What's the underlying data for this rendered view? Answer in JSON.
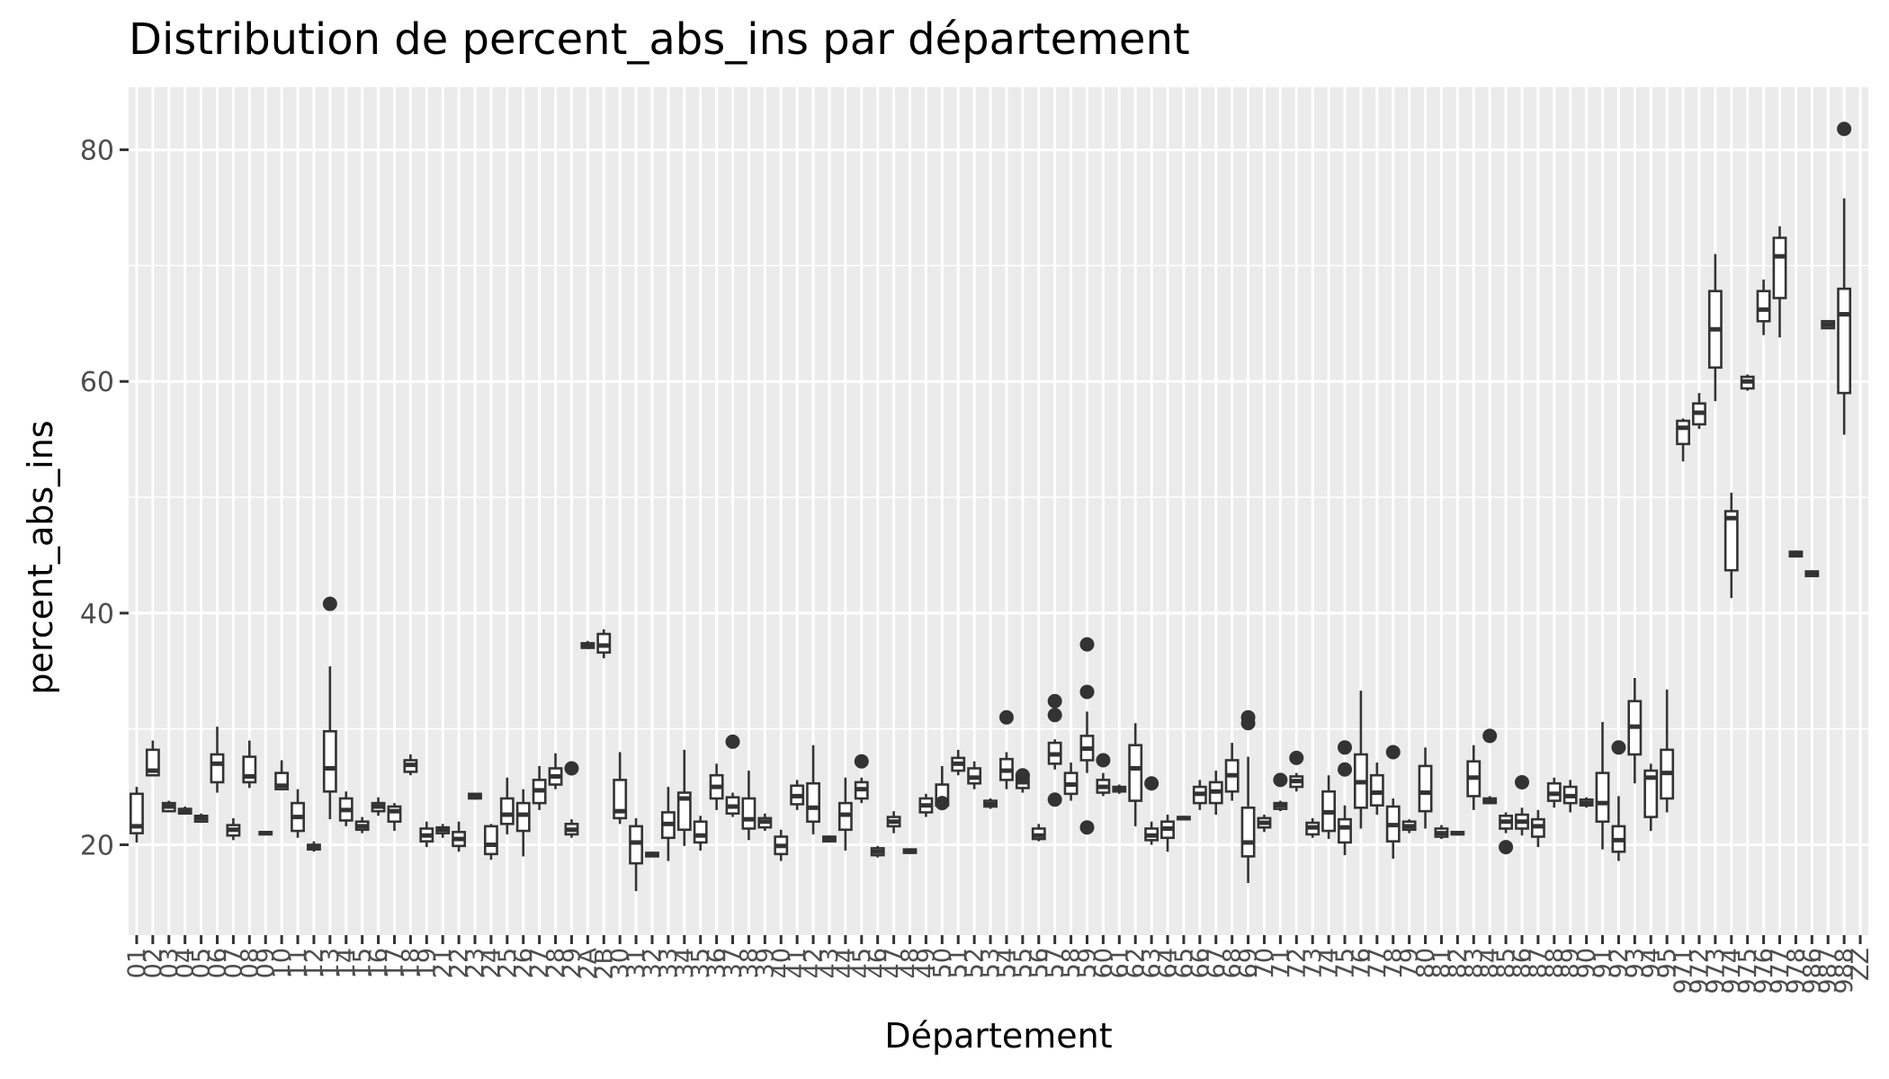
{
  "chart_data": {
    "type": "boxplot",
    "title": "Distribution de percent_abs_ins par département",
    "xlabel": "Département",
    "ylabel": "percent_abs_ins",
    "ylim": [
      12.2,
      85.4
    ],
    "yticks": [
      20,
      40,
      60,
      80
    ],
    "grid": true,
    "panel_background": "#ebebeb",
    "grid_color": "#ffffff",
    "box_color": "#333333",
    "categories": [
      "01",
      "02",
      "03",
      "04",
      "05",
      "06",
      "07",
      "08",
      "09",
      "10",
      "11",
      "12",
      "13",
      "14",
      "15",
      "16",
      "17",
      "18",
      "19",
      "21",
      "22",
      "23",
      "24",
      "25",
      "26",
      "27",
      "28",
      "29",
      "2A",
      "2B",
      "30",
      "31",
      "32",
      "33",
      "34",
      "35",
      "36",
      "37",
      "38",
      "39",
      "40",
      "41",
      "42",
      "43",
      "44",
      "45",
      "46",
      "47",
      "48",
      "49",
      "50",
      "51",
      "52",
      "53",
      "54",
      "55",
      "56",
      "57",
      "58",
      "59",
      "60",
      "61",
      "62",
      "63",
      "64",
      "65",
      "66",
      "67",
      "68",
      "69",
      "70",
      "71",
      "72",
      "73",
      "74",
      "75",
      "76",
      "77",
      "78",
      "79",
      "80",
      "81",
      "82",
      "83",
      "84",
      "85",
      "86",
      "87",
      "88",
      "89",
      "90",
      "91",
      "92",
      "93",
      "94",
      "95",
      "971",
      "972",
      "973",
      "974",
      "975",
      "976",
      "977",
      "978",
      "986",
      "987",
      "988",
      "ZZ"
    ],
    "boxes": [
      {
        "q1": 21.0,
        "median": 21.6,
        "q3": 24.4,
        "lo": 20.2,
        "hi": 25.0,
        "out": []
      },
      {
        "q1": 26.0,
        "median": 26.4,
        "q3": 28.2,
        "lo": 26.0,
        "hi": 29.0,
        "out": []
      },
      {
        "q1": 22.9,
        "median": 23.3,
        "q3": 23.6,
        "lo": 22.8,
        "hi": 23.8,
        "out": []
      },
      {
        "q1": 22.7,
        "median": 22.9,
        "q3": 23.1,
        "lo": 22.6,
        "hi": 23.3,
        "out": []
      },
      {
        "q1": 22.0,
        "median": 22.3,
        "q3": 22.5,
        "lo": 21.9,
        "hi": 22.7,
        "out": []
      },
      {
        "q1": 25.4,
        "median": 27.0,
        "q3": 27.8,
        "lo": 24.5,
        "hi": 30.2,
        "out": []
      },
      {
        "q1": 20.8,
        "median": 21.3,
        "q3": 21.7,
        "lo": 20.4,
        "hi": 22.3,
        "out": []
      },
      {
        "q1": 25.4,
        "median": 25.9,
        "q3": 27.6,
        "lo": 24.9,
        "hi": 29.0,
        "out": []
      },
      {
        "q1": 20.9,
        "median": 21.0,
        "q3": 21.1,
        "lo": 20.9,
        "hi": 21.2,
        "out": []
      },
      {
        "q1": 24.8,
        "median": 25.1,
        "q3": 26.2,
        "lo": 24.8,
        "hi": 27.3,
        "out": []
      },
      {
        "q1": 21.2,
        "median": 22.4,
        "q3": 23.6,
        "lo": 20.6,
        "hi": 24.8,
        "out": []
      },
      {
        "q1": 19.6,
        "median": 19.8,
        "q3": 20.0,
        "lo": 19.4,
        "hi": 20.3,
        "out": []
      },
      {
        "q1": 24.6,
        "median": 26.6,
        "q3": 29.8,
        "lo": 22.2,
        "hi": 35.4,
        "out": [
          40.8
        ]
      },
      {
        "q1": 22.1,
        "median": 23.0,
        "q3": 24.0,
        "lo": 21.6,
        "hi": 24.6,
        "out": []
      },
      {
        "q1": 21.3,
        "median": 21.6,
        "q3": 22.0,
        "lo": 21.0,
        "hi": 22.4,
        "out": []
      },
      {
        "q1": 22.9,
        "median": 23.3,
        "q3": 23.6,
        "lo": 22.5,
        "hi": 24.1,
        "out": []
      },
      {
        "q1": 22.0,
        "median": 22.9,
        "q3": 23.3,
        "lo": 21.2,
        "hi": 23.6,
        "out": []
      },
      {
        "q1": 26.3,
        "median": 26.9,
        "q3": 27.3,
        "lo": 26.0,
        "hi": 27.8,
        "out": []
      },
      {
        "q1": 20.3,
        "median": 20.8,
        "q3": 21.4,
        "lo": 19.8,
        "hi": 22.0,
        "out": []
      },
      {
        "q1": 21.0,
        "median": 21.3,
        "q3": 21.5,
        "lo": 20.6,
        "hi": 21.8,
        "out": []
      },
      {
        "q1": 19.9,
        "median": 20.5,
        "q3": 21.1,
        "lo": 19.4,
        "hi": 22.0,
        "out": []
      },
      {
        "q1": 24.0,
        "median": 24.2,
        "q3": 24.4,
        "lo": 23.9,
        "hi": 24.5,
        "out": []
      },
      {
        "q1": 19.2,
        "median": 20.0,
        "q3": 21.6,
        "lo": 18.7,
        "hi": 21.8,
        "out": []
      },
      {
        "q1": 21.8,
        "median": 22.6,
        "q3": 24.0,
        "lo": 20.9,
        "hi": 25.8,
        "out": []
      },
      {
        "q1": 21.2,
        "median": 22.6,
        "q3": 23.6,
        "lo": 19.0,
        "hi": 24.8,
        "out": []
      },
      {
        "q1": 23.6,
        "median": 24.7,
        "q3": 25.6,
        "lo": 23.0,
        "hi": 26.8,
        "out": []
      },
      {
        "q1": 25.2,
        "median": 25.9,
        "q3": 26.6,
        "lo": 24.8,
        "hi": 27.9,
        "out": []
      },
      {
        "q1": 20.9,
        "median": 21.3,
        "q3": 21.8,
        "lo": 20.6,
        "hi": 22.2,
        "out": [
          26.6
        ]
      },
      {
        "q1": 37.0,
        "median": 37.2,
        "q3": 37.4,
        "lo": 36.9,
        "hi": 37.6,
        "out": []
      },
      {
        "q1": 36.6,
        "median": 37.2,
        "q3": 38.2,
        "lo": 36.1,
        "hi": 38.6,
        "out": []
      },
      {
        "q1": 22.3,
        "median": 22.9,
        "q3": 25.6,
        "lo": 21.8,
        "hi": 28.0,
        "out": []
      },
      {
        "q1": 18.4,
        "median": 20.2,
        "q3": 21.6,
        "lo": 16.0,
        "hi": 22.3,
        "out": []
      },
      {
        "q1": 19.0,
        "median": 19.2,
        "q3": 19.3,
        "lo": 19.0,
        "hi": 19.4,
        "out": []
      },
      {
        "q1": 20.6,
        "median": 21.8,
        "q3": 22.8,
        "lo": 18.6,
        "hi": 25.0,
        "out": []
      },
      {
        "q1": 21.3,
        "median": 24.0,
        "q3": 24.5,
        "lo": 19.9,
        "hi": 28.2,
        "out": []
      },
      {
        "q1": 20.2,
        "median": 20.8,
        "q3": 22.0,
        "lo": 19.5,
        "hi": 22.5,
        "out": []
      },
      {
        "q1": 24.0,
        "median": 25.0,
        "q3": 26.0,
        "lo": 23.0,
        "hi": 27.0,
        "out": []
      },
      {
        "q1": 22.7,
        "median": 23.3,
        "q3": 24.1,
        "lo": 22.4,
        "hi": 24.5,
        "out": [
          28.9
        ]
      },
      {
        "q1": 21.4,
        "median": 22.2,
        "q3": 24.0,
        "lo": 20.4,
        "hi": 26.4,
        "out": []
      },
      {
        "q1": 21.5,
        "median": 22.0,
        "q3": 22.3,
        "lo": 21.2,
        "hi": 22.7,
        "out": []
      },
      {
        "q1": 19.2,
        "median": 19.9,
        "q3": 20.7,
        "lo": 18.6,
        "hi": 21.3,
        "out": []
      },
      {
        "q1": 23.5,
        "median": 24.2,
        "q3": 25.1,
        "lo": 23.0,
        "hi": 25.6,
        "out": []
      },
      {
        "q1": 22.0,
        "median": 23.2,
        "q3": 25.3,
        "lo": 20.9,
        "hi": 28.6,
        "out": []
      },
      {
        "q1": 20.3,
        "median": 20.5,
        "q3": 20.7,
        "lo": 20.2,
        "hi": 20.8,
        "out": []
      },
      {
        "q1": 21.3,
        "median": 22.6,
        "q3": 23.6,
        "lo": 19.5,
        "hi": 25.8,
        "out": []
      },
      {
        "q1": 24.0,
        "median": 24.8,
        "q3": 25.4,
        "lo": 23.6,
        "hi": 25.8,
        "out": [
          27.2
        ]
      },
      {
        "q1": 19.1,
        "median": 19.4,
        "q3": 19.7,
        "lo": 18.9,
        "hi": 19.9,
        "out": []
      },
      {
        "q1": 21.6,
        "median": 22.0,
        "q3": 22.4,
        "lo": 21.0,
        "hi": 22.9,
        "out": []
      },
      {
        "q1": 19.3,
        "median": 19.5,
        "q3": 19.6,
        "lo": 19.2,
        "hi": 19.7,
        "out": []
      },
      {
        "q1": 22.8,
        "median": 23.4,
        "q3": 24.0,
        "lo": 22.4,
        "hi": 24.4,
        "out": []
      },
      {
        "q1": 23.4,
        "median": 23.6,
        "q3": 25.2,
        "lo": 23.2,
        "hi": 26.8,
        "out": [
          23.6
        ]
      },
      {
        "q1": 26.4,
        "median": 27.0,
        "q3": 27.5,
        "lo": 26.0,
        "hi": 28.2,
        "out": []
      },
      {
        "q1": 25.3,
        "median": 25.8,
        "q3": 26.6,
        "lo": 24.8,
        "hi": 27.2,
        "out": []
      },
      {
        "q1": 23.3,
        "median": 23.5,
        "q3": 23.8,
        "lo": 23.1,
        "hi": 24.0,
        "out": []
      },
      {
        "q1": 25.6,
        "median": 26.4,
        "q3": 27.4,
        "lo": 24.8,
        "hi": 28.0,
        "out": [
          31.0
        ]
      },
      {
        "q1": 24.9,
        "median": 25.4,
        "q3": 26.0,
        "lo": 24.5,
        "hi": 26.5,
        "out": [
          26.0
        ]
      },
      {
        "q1": 20.5,
        "median": 20.8,
        "q3": 21.4,
        "lo": 20.3,
        "hi": 21.8,
        "out": []
      },
      {
        "q1": 27.0,
        "median": 27.8,
        "q3": 28.8,
        "lo": 26.5,
        "hi": 29.1,
        "out": [
          32.4,
          31.2,
          23.9
        ]
      },
      {
        "q1": 24.4,
        "median": 25.2,
        "q3": 26.2,
        "lo": 23.8,
        "hi": 27.1,
        "out": []
      },
      {
        "q1": 27.3,
        "median": 28.3,
        "q3": 29.4,
        "lo": 26.2,
        "hi": 31.5,
        "out": [
          37.3,
          33.2,
          21.5
        ]
      },
      {
        "q1": 24.5,
        "median": 25.0,
        "q3": 25.6,
        "lo": 24.2,
        "hi": 26.2,
        "out": [
          27.3
        ]
      },
      {
        "q1": 24.6,
        "median": 24.8,
        "q3": 25.0,
        "lo": 24.4,
        "hi": 25.2,
        "out": []
      },
      {
        "q1": 23.8,
        "median": 26.6,
        "q3": 28.6,
        "lo": 21.6,
        "hi": 30.5,
        "out": []
      },
      {
        "q1": 20.4,
        "median": 20.8,
        "q3": 21.4,
        "lo": 20.0,
        "hi": 22.0,
        "out": [
          25.3
        ]
      },
      {
        "q1": 20.6,
        "median": 21.4,
        "q3": 22.0,
        "lo": 19.4,
        "hi": 22.6,
        "out": []
      },
      {
        "q1": 22.2,
        "median": 22.3,
        "q3": 22.4,
        "lo": 22.1,
        "hi": 22.5,
        "out": []
      },
      {
        "q1": 23.6,
        "median": 24.4,
        "q3": 25.0,
        "lo": 23.0,
        "hi": 25.6,
        "out": []
      },
      {
        "q1": 23.6,
        "median": 24.6,
        "q3": 25.4,
        "lo": 22.6,
        "hi": 26.4,
        "out": []
      },
      {
        "q1": 24.6,
        "median": 26.0,
        "q3": 27.3,
        "lo": 23.8,
        "hi": 28.8,
        "out": []
      },
      {
        "q1": 19.0,
        "median": 20.2,
        "q3": 23.2,
        "lo": 16.7,
        "hi": 27.6,
        "out": [
          31.0,
          30.5
        ]
      },
      {
        "q1": 21.5,
        "median": 21.9,
        "q3": 22.3,
        "lo": 21.1,
        "hi": 22.6,
        "out": []
      },
      {
        "q1": 23.1,
        "median": 23.4,
        "q3": 23.6,
        "lo": 22.9,
        "hi": 23.8,
        "out": [
          25.6
        ]
      },
      {
        "q1": 25.0,
        "median": 25.5,
        "q3": 25.9,
        "lo": 24.6,
        "hi": 26.2,
        "out": [
          27.5
        ]
      },
      {
        "q1": 20.9,
        "median": 21.5,
        "q3": 21.9,
        "lo": 20.6,
        "hi": 22.3,
        "out": []
      },
      {
        "q1": 21.2,
        "median": 22.8,
        "q3": 24.6,
        "lo": 20.5,
        "hi": 26.0,
        "out": []
      },
      {
        "q1": 20.2,
        "median": 21.5,
        "q3": 22.2,
        "lo": 19.1,
        "hi": 23.4,
        "out": [
          28.4,
          26.5
        ]
      },
      {
        "q1": 23.2,
        "median": 25.4,
        "q3": 27.8,
        "lo": 21.4,
        "hi": 33.3,
        "out": []
      },
      {
        "q1": 23.4,
        "median": 24.5,
        "q3": 26.0,
        "lo": 22.6,
        "hi": 27.1,
        "out": []
      },
      {
        "q1": 20.3,
        "median": 21.7,
        "q3": 23.3,
        "lo": 18.8,
        "hi": 24.0,
        "out": [
          28.0
        ]
      },
      {
        "q1": 21.3,
        "median": 21.6,
        "q3": 22.0,
        "lo": 21.0,
        "hi": 22.2,
        "out": []
      },
      {
        "q1": 22.9,
        "median": 24.5,
        "q3": 26.8,
        "lo": 21.4,
        "hi": 28.4,
        "out": []
      },
      {
        "q1": 20.7,
        "median": 21.0,
        "q3": 21.4,
        "lo": 20.5,
        "hi": 21.7,
        "out": []
      },
      {
        "q1": 20.9,
        "median": 21.0,
        "q3": 21.1,
        "lo": 20.8,
        "hi": 21.2,
        "out": []
      },
      {
        "q1": 24.2,
        "median": 25.8,
        "q3": 27.2,
        "lo": 23.0,
        "hi": 28.6,
        "out": []
      },
      {
        "q1": 23.6,
        "median": 23.8,
        "q3": 24.0,
        "lo": 23.5,
        "hi": 24.2,
        "out": [
          29.4
        ]
      },
      {
        "q1": 21.4,
        "median": 22.0,
        "q3": 22.5,
        "lo": 21.0,
        "hi": 22.8,
        "out": [
          19.8
        ]
      },
      {
        "q1": 21.4,
        "median": 22.0,
        "q3": 22.6,
        "lo": 20.8,
        "hi": 23.2,
        "out": [
          25.4
        ]
      },
      {
        "q1": 20.7,
        "median": 21.6,
        "q3": 22.2,
        "lo": 19.8,
        "hi": 23.0,
        "out": []
      },
      {
        "q1": 23.8,
        "median": 24.4,
        "q3": 25.3,
        "lo": 23.2,
        "hi": 25.8,
        "out": []
      },
      {
        "q1": 23.6,
        "median": 24.2,
        "q3": 25.0,
        "lo": 22.8,
        "hi": 25.6,
        "out": []
      },
      {
        "q1": 23.4,
        "median": 23.6,
        "q3": 23.9,
        "lo": 23.2,
        "hi": 24.1,
        "out": []
      },
      {
        "q1": 22.0,
        "median": 23.6,
        "q3": 26.2,
        "lo": 19.6,
        "hi": 30.6,
        "out": []
      },
      {
        "q1": 19.4,
        "median": 20.4,
        "q3": 21.6,
        "lo": 18.6,
        "hi": 24.2,
        "out": [
          28.4
        ]
      },
      {
        "q1": 27.8,
        "median": 30.2,
        "q3": 32.4,
        "lo": 25.3,
        "hi": 34.4,
        "out": []
      },
      {
        "q1": 22.4,
        "median": 25.8,
        "q3": 26.4,
        "lo": 21.2,
        "hi": 27.0,
        "out": []
      },
      {
        "q1": 24.0,
        "median": 26.2,
        "q3": 28.2,
        "lo": 22.8,
        "hi": 33.4,
        "out": []
      },
      {
        "q1": 54.6,
        "median": 56.0,
        "q3": 56.6,
        "lo": 53.1,
        "hi": 56.8,
        "out": []
      },
      {
        "q1": 56.3,
        "median": 57.3,
        "q3": 58.1,
        "lo": 55.9,
        "hi": 59.0,
        "out": []
      },
      {
        "q1": 61.2,
        "median": 64.5,
        "q3": 67.8,
        "lo": 58.3,
        "hi": 71.0,
        "out": []
      },
      {
        "q1": 43.7,
        "median": 48.2,
        "q3": 48.8,
        "lo": 41.3,
        "hi": 50.4,
        "out": []
      },
      {
        "q1": 59.4,
        "median": 60.0,
        "q3": 60.4,
        "lo": 59.2,
        "hi": 60.6,
        "out": []
      },
      {
        "q1": 65.2,
        "median": 66.2,
        "q3": 67.8,
        "lo": 64.0,
        "hi": 68.8,
        "out": []
      },
      {
        "q1": 67.2,
        "median": 70.8,
        "q3": 72.4,
        "lo": 63.8,
        "hi": 73.4,
        "out": []
      },
      {
        "q1": 44.9,
        "median": 45.1,
        "q3": 45.3,
        "lo": 44.8,
        "hi": 45.4,
        "out": []
      },
      {
        "q1": 43.2,
        "median": 43.4,
        "q3": 43.6,
        "lo": 43.1,
        "hi": 43.7,
        "out": []
      },
      {
        "q1": 64.6,
        "median": 64.9,
        "q3": 65.2,
        "lo": 64.5,
        "hi": 65.3,
        "out": []
      },
      {
        "q1": 59.0,
        "median": 65.8,
        "q3": 68.0,
        "lo": 55.4,
        "hi": 75.8,
        "out": [
          81.8
        ]
      }
    ]
  }
}
